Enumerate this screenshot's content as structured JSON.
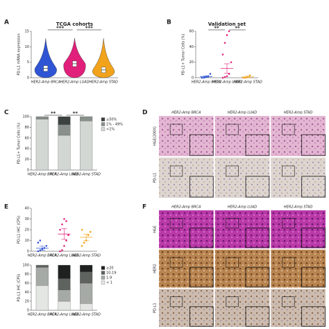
{
  "panel_labels": [
    "A",
    "B",
    "C",
    "D",
    "E",
    "F"
  ],
  "chart_data": [
    {
      "type": "violin",
      "title": "TCGA cohorts",
      "ylabel": "PD-L1 mRNA expression",
      "categories": [
        "HER2-Amp BRCA",
        "HER2-Amp LUAD",
        "HER2-Amp STAD"
      ],
      "colors": [
        "#2f55d4",
        "#e0207a",
        "#f2a31c"
      ],
      "medians": [
        3,
        4.5,
        2.5
      ],
      "ylim": [
        0,
        15
      ],
      "yticks": [
        0,
        5,
        10,
        15
      ],
      "annotations": [
        "***",
        "***"
      ]
    },
    {
      "type": "dot",
      "title": "Validation set",
      "ylabel": "PD-L1+ Tumor Cells (%)",
      "categories": [
        "HER2-Amp BRCA",
        "HER2-Amp LUAD",
        "HER2-Amp STAD"
      ],
      "colors": [
        "#2f55d4",
        "#e0207a",
        "#f2a31c"
      ],
      "points": [
        [
          0,
          0,
          1,
          2,
          5
        ],
        [
          0,
          1,
          2,
          5,
          20,
          30,
          45,
          55,
          60
        ],
        [
          0,
          0,
          1,
          3
        ]
      ],
      "means": [
        1.5,
        12,
        1
      ],
      "errors": [
        1,
        6,
        1
      ],
      "ylim": [
        0,
        60
      ],
      "yticks": [
        0,
        20,
        40,
        60
      ],
      "annotations": [
        "**",
        "**"
      ]
    },
    {
      "type": "stacked",
      "ylabel": "PD-L1+ Tumor Cells (%)",
      "categories": [
        "HER2-Amp BRCA",
        "HER2-Amp LUAD",
        "HER2-Amp STAD"
      ],
      "series": [
        {
          "name": "<1%",
          "color": "#d3d7d3",
          "values": [
            95,
            65,
            92
          ]
        },
        {
          "name": "1% - 49%",
          "color": "#8a908c",
          "values": [
            5,
            20,
            8
          ]
        },
        {
          "name": "≥50%",
          "color": "#3c4240",
          "values": [
            0,
            15,
            0
          ]
        }
      ],
      "ylim": [
        0,
        100
      ],
      "yticks": [
        0,
        20,
        40,
        60,
        80,
        100
      ],
      "annotations": [
        "**",
        "**"
      ]
    },
    {
      "type": "dot",
      "ylabel": "PD-L1 IHC (CPS)",
      "categories": [
        "HER2-Amp BRCA",
        "HER2-Amp LUAD",
        "HER2-Amp STAD"
      ],
      "colors": [
        "#2f55d4",
        "#e0207a",
        "#f2a31c"
      ],
      "points": [
        [
          0,
          1,
          2,
          3,
          5,
          8,
          10
        ],
        [
          0,
          1,
          5,
          10,
          15,
          20,
          25,
          30,
          28
        ],
        [
          5,
          8,
          10,
          15,
          18,
          20
        ]
      ],
      "means": [
        3,
        16,
        13
      ],
      "errors": [
        2,
        5,
        3
      ],
      "ylim": [
        0,
        40
      ],
      "yticks": [
        0,
        10,
        20,
        30,
        40
      ]
    },
    {
      "type": "stacked",
      "ylabel": "PD-L1 IHC (CPS)",
      "categories": [
        "HER2-Amp BRCA",
        "HER2-Amp LUAD",
        "HER2-Amp STAD"
      ],
      "series": [
        {
          "name": "< 1",
          "color": "#e4e6e4",
          "values": [
            55,
            20,
            15
          ]
        },
        {
          "name": "1-9",
          "color": "#a6aaa7",
          "values": [
            40,
            25,
            45
          ]
        },
        {
          "name": "10-19",
          "color": "#5e6360",
          "values": [
            5,
            25,
            25
          ]
        },
        {
          "name": "≥20",
          "color": "#1e2120",
          "values": [
            0,
            30,
            15
          ]
        }
      ],
      "ylim": [
        0,
        100
      ],
      "yticks": [
        0,
        20,
        40,
        60,
        80,
        100
      ]
    }
  ],
  "image_panels": [
    {
      "columns": [
        "HER2-Amp BRCA",
        "HER2-Amp LUAD",
        "HER2-Amp STAD"
      ],
      "rows": [
        "H&E(200X)",
        "PD-L1"
      ]
    },
    {
      "columns": [
        "HER2-Amp BRCA",
        "HER2-Amp LUAD",
        "HER2-Amp STAD"
      ],
      "rows": [
        "H&E",
        "HER2",
        "PD-L1"
      ]
    }
  ]
}
